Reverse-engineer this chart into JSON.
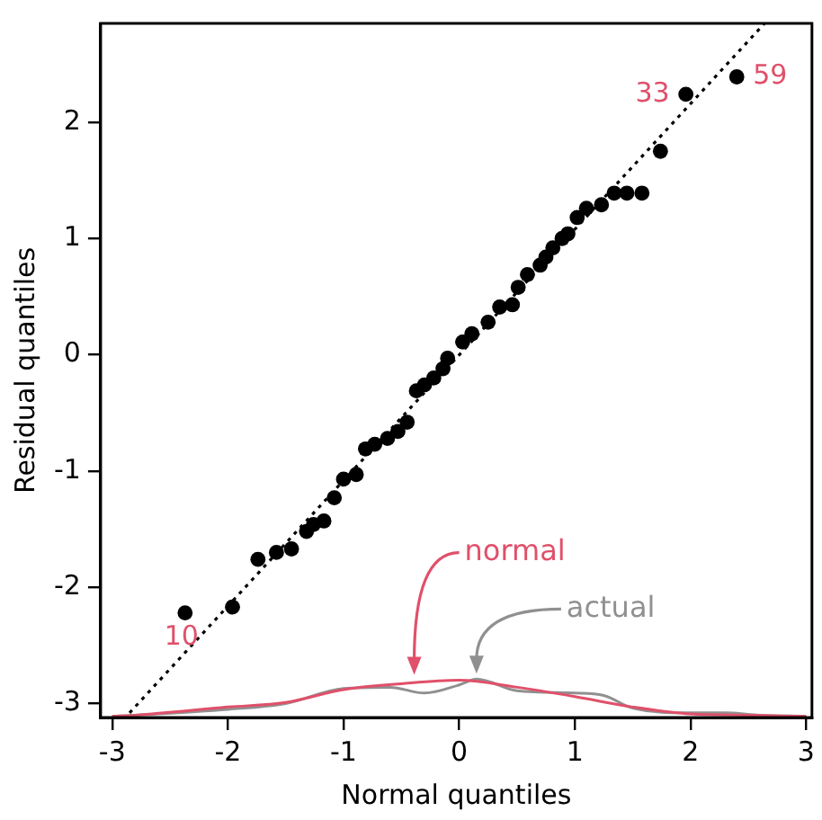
{
  "chart_data": {
    "type": "scatter",
    "xlabel": "Normal quantiles",
    "ylabel": "Residual quantiles",
    "xlim": [
      -3.1,
      3.05
    ],
    "ylim": [
      -3.12,
      2.85
    ],
    "xticks": [
      -3,
      -2,
      -1,
      0,
      1,
      2,
      3
    ],
    "yticks": [
      -3,
      -2,
      -1,
      0,
      1,
      2
    ],
    "grid": false,
    "legend": false,
    "marker": "circle",
    "annotations": [
      {
        "text": "10",
        "x": -2.37,
        "y": -2.22
      },
      {
        "text": "33",
        "x": 1.96,
        "y": 2.24
      },
      {
        "text": "59",
        "x": 2.4,
        "y": 2.39
      }
    ],
    "series": [
      {
        "type": "line",
        "color": "#000000",
        "line_style": "dotted",
        "marker": "none",
        "x": [
          -2.85,
          2.64
        ],
        "values": [
          -3.08,
          2.85
        ]
      },
      {
        "type": "line",
        "name": "normal",
        "color": "#e0506a",
        "line_style": "solid",
        "marker": "none",
        "x": [
          -3,
          -2.8,
          -2,
          -1.5,
          -1,
          -0.5,
          0,
          0.5,
          1,
          1.5,
          2,
          2.5,
          3
        ],
        "values": [
          -3.11,
          -3.1,
          -3.03,
          -2.99,
          -2.88,
          -2.83,
          -2.8,
          -2.86,
          -2.94,
          -3.03,
          -3.09,
          -3.1,
          -3.11
        ]
      },
      {
        "type": "line",
        "name": "actual",
        "color": "#909090",
        "line_style": "solid",
        "marker": "none",
        "x": [
          -3,
          -2.8,
          -2,
          -1.5,
          -1,
          -0.6,
          -0.3,
          0,
          0.15,
          0.5,
          1,
          1.25,
          1.5,
          2,
          2.3,
          2.6,
          3
        ],
        "values": [
          -3.11,
          -3.1,
          -3.05,
          -3,
          -2.87,
          -2.86,
          -2.91,
          -2.84,
          -2.79,
          -2.89,
          -2.91,
          -2.93,
          -3.04,
          -3.08,
          -3.08,
          -3.1,
          -3.11
        ]
      },
      {
        "type": "scatter",
        "color": "#000000",
        "x": [
          -2.37,
          -1.96,
          -1.74,
          -1.58,
          -1.45,
          -1.32,
          -1.26,
          -1.17,
          -1.08,
          -1.0,
          -0.89,
          -0.81,
          -0.73,
          -0.62,
          -0.53,
          -0.45,
          -0.37,
          -0.3,
          -0.22,
          -0.14,
          -0.1,
          0.03,
          0.11,
          0.25,
          0.35,
          0.46,
          0.51,
          0.59,
          0.7,
          0.75,
          0.81,
          0.89,
          0.94,
          1.02,
          1.1,
          1.23,
          1.34,
          1.45,
          1.58,
          1.74,
          1.96,
          2.4
        ],
        "values": [
          -2.22,
          -2.17,
          -1.76,
          -1.7,
          -1.67,
          -1.52,
          -1.46,
          -1.43,
          -1.23,
          -1.07,
          -1.03,
          -0.81,
          -0.77,
          -0.72,
          -0.66,
          -0.58,
          -0.31,
          -0.26,
          -0.2,
          -0.12,
          -0.03,
          0.11,
          0.18,
          0.28,
          0.41,
          0.43,
          0.58,
          0.69,
          0.77,
          0.84,
          0.92,
          1.0,
          1.04,
          1.18,
          1.26,
          1.29,
          1.39,
          1.39,
          1.39,
          1.75,
          2.24,
          2.39
        ]
      }
    ]
  }
}
